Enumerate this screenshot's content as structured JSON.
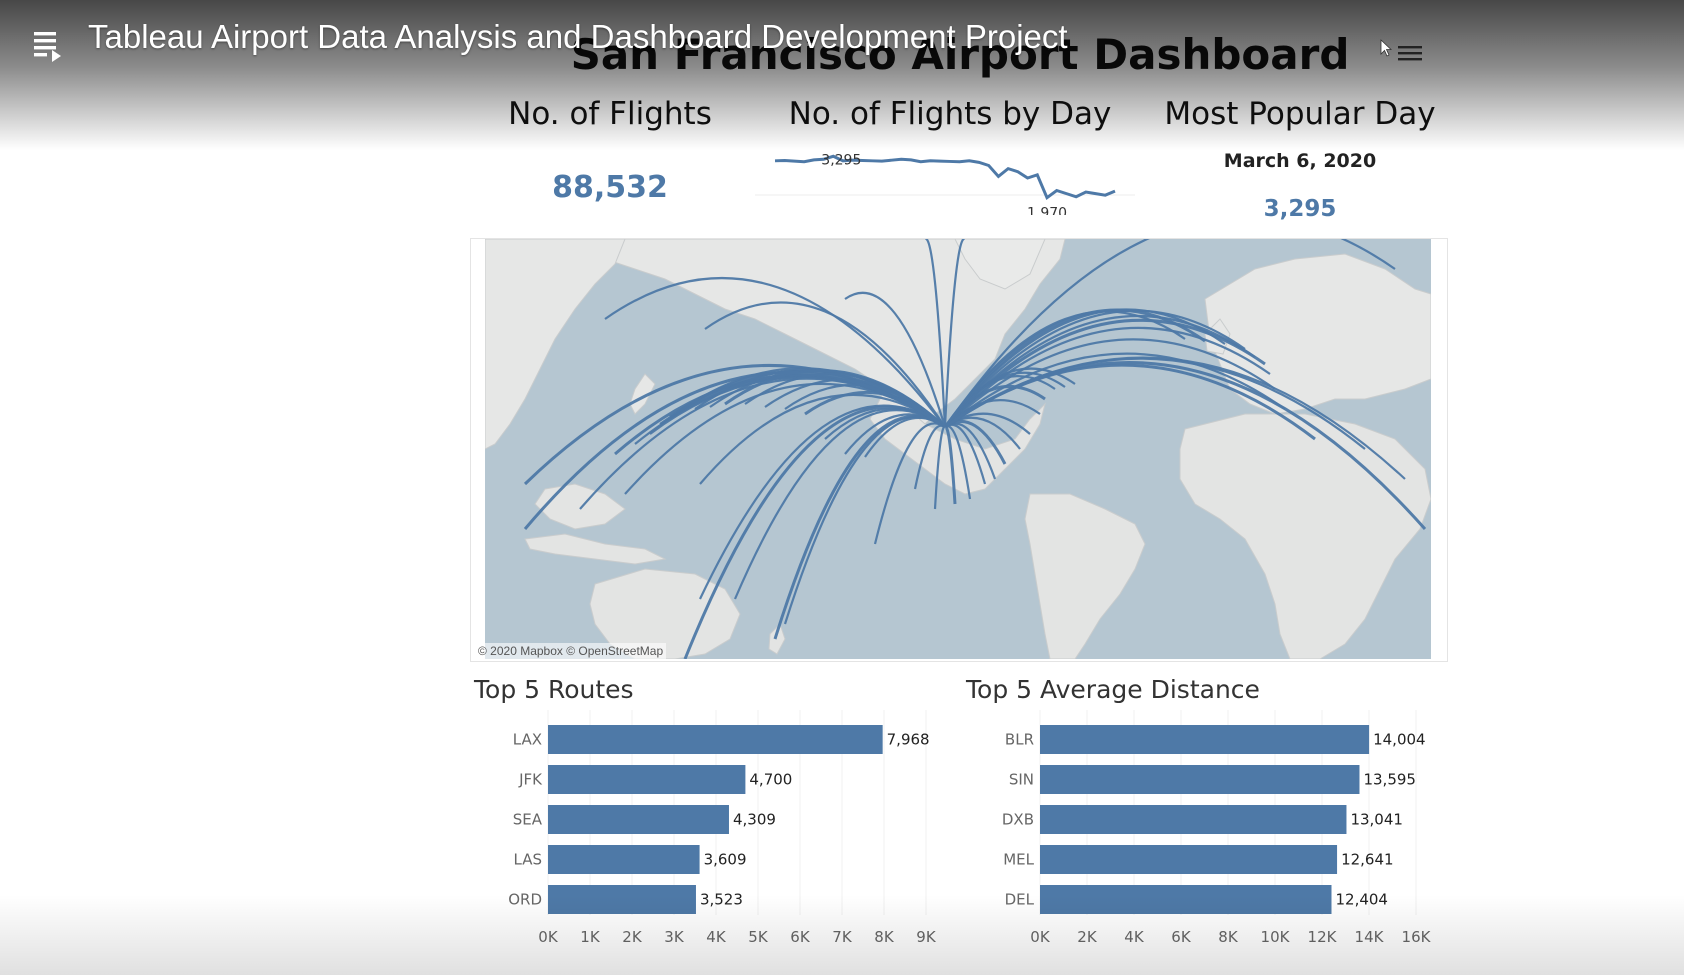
{
  "player": {
    "video_title": "Tableau Airport Data Analysis and Dashboard Development Project",
    "playlist_icon": "playlist-icon",
    "menu_icon": "menu-icon"
  },
  "dashboard": {
    "title": "San Francisco Airport Dashboard",
    "kpi_flights": {
      "title": "No. of Flights",
      "value": "88,532"
    },
    "kpi_by_day": {
      "title": "No. of Flights by Day",
      "max_label": "3,295",
      "min_label": "1,970"
    },
    "kpi_popular": {
      "title": "Most Popular Day",
      "date": "March 6, 2020",
      "value": "3,295"
    },
    "map_credit": "© 2020 Mapbox © OpenStreetMap",
    "accent_color": "#4e79a7"
  },
  "chart_data": [
    {
      "type": "line",
      "title": "No. of Flights by Day",
      "points_labeled": [
        {
          "label": "3,295",
          "value": 3295
        },
        {
          "label": "1,970",
          "value": 1970
        }
      ],
      "values": [
        3150,
        3160,
        3140,
        3120,
        3180,
        3200,
        3295,
        3150,
        3170,
        3160,
        3150,
        3140,
        3170,
        3200,
        3180,
        3120,
        3150,
        3140,
        3130,
        3120,
        3150,
        3100,
        3000,
        2650,
        2900,
        2800,
        2600,
        2700,
        1970,
        2200,
        2100,
        2000,
        2150,
        2100,
        2050,
        2180
      ]
    },
    {
      "type": "bar",
      "title": "Top 5 Routes",
      "categories": [
        "LAX",
        "JFK",
        "SEA",
        "LAS",
        "ORD"
      ],
      "values": [
        7968,
        4700,
        4309,
        3609,
        3523
      ],
      "value_labels": [
        "7,968",
        "4,700",
        "4,309",
        "3,609",
        "3,523"
      ],
      "xlim": [
        0,
        9000
      ],
      "ticks": [
        "0K",
        "1K",
        "2K",
        "3K",
        "4K",
        "5K",
        "6K",
        "7K",
        "8K",
        "9K"
      ]
    },
    {
      "type": "bar",
      "title": "Top 5 Average Distance",
      "categories": [
        "BLR",
        "SIN",
        "DXB",
        "MEL",
        "DEL"
      ],
      "values": [
        14004,
        13595,
        13041,
        12641,
        12404
      ],
      "value_labels": [
        "14,004",
        "13,595",
        "13,041",
        "12,641",
        "12,404"
      ],
      "xlim": [
        0,
        16000
      ],
      "ticks": [
        "0K",
        "2K",
        "4K",
        "6K",
        "8K",
        "10K",
        "12K",
        "14K",
        "16K"
      ]
    }
  ]
}
